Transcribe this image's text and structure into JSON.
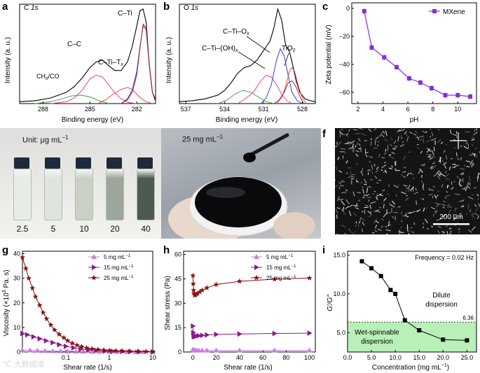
{
  "chart_data": [
    {
      "id": "a",
      "type": "line",
      "panel_label": "a",
      "title_el": "C",
      "title_orb": "1s",
      "xlabel": "Binding energy (eV)",
      "ylabel": "Intensity (a. u.)",
      "xlim": [
        289.5,
        280.8
      ],
      "xticks": [
        288,
        285,
        282
      ],
      "annotations": [
        "C–Ti",
        "C–C",
        "C–Ti–T",
        "CH",
        "/CO"
      ],
      "ann_subs": {
        "ctit": "x",
        "chx": "x"
      },
      "series": [
        {
          "name": "envelope",
          "color": "#000000",
          "x": [
            289.5,
            288.5,
            287.5,
            286.5,
            286,
            285.5,
            285,
            284.6,
            284.2,
            283.8,
            283.4,
            283,
            282.6,
            282.3,
            282,
            281.8,
            281.6,
            281.4,
            281.2,
            281,
            280.8
          ],
          "y": [
            2,
            3,
            6,
            12,
            18,
            27,
            38,
            44,
            46,
            40,
            35,
            35,
            44,
            60,
            82,
            98,
            100,
            86,
            40,
            12,
            4
          ]
        },
        {
          "name": "C-C",
          "color": "#e43ea8",
          "x": [
            287.5,
            286.5,
            286,
            285.5,
            285,
            284.6,
            284.2,
            283.8,
            283.4,
            283,
            282.5,
            282
          ],
          "y": [
            0,
            2,
            6,
            14,
            26,
            30,
            28,
            20,
            11,
            5,
            1,
            0
          ]
        },
        {
          "name": "C-Ti-Tx",
          "color": "#e05050",
          "x": [
            284.5,
            284,
            283.5,
            283,
            282.6,
            282.3,
            282,
            281.7,
            281.4,
            281
          ],
          "y": [
            0,
            4,
            10,
            15,
            17,
            15,
            10,
            5,
            2,
            0
          ]
        },
        {
          "name": "C-Ti",
          "color": "#3a3ad8",
          "x": [
            283,
            282.6,
            282.3,
            282,
            281.8,
            281.6,
            281.4,
            281.2,
            281,
            280.8
          ],
          "y": [
            0,
            5,
            14,
            34,
            60,
            82,
            78,
            40,
            12,
            2
          ]
        },
        {
          "name": "C-Ti dark",
          "color": "#a52a2a",
          "x": [
            283,
            282.6,
            282.3,
            282,
            281.8,
            281.6,
            281.4,
            281.2,
            281,
            280.8
          ],
          "y": [
            0,
            4,
            12,
            30,
            58,
            84,
            80,
            42,
            12,
            2
          ]
        },
        {
          "name": "CHx/CO",
          "color": "#3ea03e",
          "x": [
            288.5,
            287.5,
            286.8,
            286.2,
            285.6,
            285,
            284.4,
            283.8
          ],
          "y": [
            0,
            2,
            5,
            8,
            9,
            7,
            3,
            0
          ]
        }
      ]
    },
    {
      "id": "b",
      "type": "line",
      "panel_label": "b",
      "title_el": "O",
      "title_orb": "1s",
      "xlabel": "Binding energy (eV)",
      "ylabel": "Intensity (a. u.)",
      "xlim": [
        537.5,
        527
      ],
      "xticks": [
        537,
        534,
        531,
        528
      ],
      "annotations": [
        "C–Ti–O",
        "C–Ti–(OH)",
        "TiO"
      ],
      "ann_subs": {
        "ctio": "x",
        "ctioh": "x",
        "tio": "2"
      },
      "series": [
        {
          "name": "envelope",
          "color": "#000000",
          "x": [
            537.5,
            536.5,
            535.5,
            534.5,
            534,
            533.5,
            533,
            532.5,
            532,
            531.5,
            531,
            530.5,
            530.2,
            529.9,
            529.6,
            529.3,
            529,
            528.8,
            528.5,
            528.2,
            527.8,
            527.4,
            527
          ],
          "y": [
            2,
            3,
            5,
            9,
            14,
            22,
            32,
            38,
            40,
            46,
            56,
            66,
            80,
            100,
            88,
            62,
            55,
            44,
            25,
            12,
            5,
            3,
            2
          ]
        },
        {
          "name": "C-Ti-(OH)x",
          "color": "#3ea03e",
          "x": [
            534.5,
            533.8,
            533.2,
            532.6,
            532,
            531.4,
            530.8,
            530.2
          ],
          "y": [
            0,
            4,
            10,
            14,
            12,
            7,
            2,
            0
          ]
        },
        {
          "name": "C-Ti-Ox",
          "color": "#e43ea8",
          "x": [
            533,
            532.4,
            531.8,
            531.2,
            530.8,
            530.4,
            530,
            529.6,
            529.2,
            528.8
          ],
          "y": [
            0,
            5,
            12,
            24,
            30,
            28,
            20,
            10,
            3,
            0
          ]
        },
        {
          "name": "C-Ti-Ox blue",
          "color": "#3a3ad8",
          "x": [
            531.2,
            530.8,
            530.4,
            530,
            529.7,
            529.4,
            529.1,
            528.8,
            528.4,
            528
          ],
          "y": [
            0,
            6,
            20,
            46,
            58,
            50,
            30,
            12,
            3,
            0
          ]
        },
        {
          "name": "TiO2",
          "color": "#e05050",
          "x": [
            530,
            529.6,
            529.3,
            529,
            528.8,
            528.6,
            528.3,
            528,
            527.7
          ],
          "y": [
            0,
            6,
            18,
            34,
            38,
            34,
            18,
            6,
            0
          ]
        },
        {
          "name": "TiO2 dark",
          "color": "#a52a2a",
          "x": [
            530.2,
            529.8,
            529.4,
            529.1,
            528.8,
            528.5,
            528.2,
            527.9
          ],
          "y": [
            0,
            4,
            12,
            22,
            24,
            18,
            8,
            0
          ]
        }
      ]
    },
    {
      "id": "c",
      "type": "line",
      "panel_label": "c",
      "xlabel": "pH",
      "ylabel": "Zeta potential (mV)",
      "xlim": [
        1.5,
        11.5
      ],
      "ylim": [
        -68,
        4
      ],
      "xticks": [
        2,
        4,
        6,
        8,
        10,
        12
      ],
      "yticks": [
        0,
        -20,
        -40,
        -60
      ],
      "legend": "MXene",
      "color": "#8b2be2",
      "x": [
        2.5,
        3.1,
        4.1,
        5.1,
        6.1,
        7.0,
        7.9,
        9.0,
        10.0,
        11.0
      ],
      "y": [
        -2,
        -28,
        -35,
        -42,
        -50,
        -53,
        -57,
        -62,
        -62,
        -63
      ]
    },
    {
      "id": "g",
      "type": "line",
      "panel_label": "g",
      "xlabel": "Shear rate (1/s)",
      "ylabel_prefix": "Viscosity (×10",
      "ylabel_sup": "3",
      "ylabel_suffix": " Pa. s)",
      "xscale": "log",
      "xlim": [
        0.01,
        10
      ],
      "ylim": [
        0,
        41
      ],
      "xticks": [
        0.1,
        1,
        10
      ],
      "xticklabels": [
        "0.1",
        "1",
        "10"
      ],
      "yticks": [
        0,
        10,
        20,
        30,
        40
      ],
      "series": [
        {
          "name": "5 mg mL",
          "unit_sup": "−1",
          "color": "#c77fe0",
          "marker": "triangle-up",
          "x": [
            0.01,
            0.015,
            0.022,
            0.033,
            0.05,
            0.075,
            0.11,
            0.17,
            0.25,
            0.4,
            0.6,
            1,
            1.5,
            2.5,
            4,
            6,
            10
          ],
          "y": [
            0.8,
            0.7,
            0.6,
            0.5,
            0.4,
            0.35,
            0.3,
            0.25,
            0.2,
            0.18,
            0.15,
            0.12,
            0.1,
            0.1,
            0.08,
            0.08,
            0.07
          ]
        },
        {
          "name": "15 mg mL",
          "unit_sup": "−1",
          "color": "#8b1a8b",
          "marker": "triangle-right",
          "x": [
            0.01,
            0.013,
            0.018,
            0.025,
            0.035,
            0.05,
            0.07,
            0.1,
            0.15,
            0.22,
            0.33,
            0.5,
            0.8,
            1.2,
            2,
            3,
            5,
            10
          ],
          "y": [
            7.5,
            7,
            6.2,
            5.4,
            4.6,
            3.8,
            3,
            2.3,
            1.7,
            1.2,
            0.9,
            0.6,
            0.4,
            0.3,
            0.2,
            0.15,
            0.1,
            0.08
          ]
        },
        {
          "name": "25 mg mL",
          "unit_sup": "−1",
          "color": "#8b1010",
          "marker": "star",
          "x": [
            0.01,
            0.012,
            0.014,
            0.017,
            0.02,
            0.025,
            0.03,
            0.036,
            0.045,
            0.055,
            0.07,
            0.09,
            0.11,
            0.14,
            0.18,
            0.23,
            0.3,
            0.4,
            0.55,
            0.75,
            1,
            1.4,
            2,
            3,
            4.5,
            7,
            10
          ],
          "y": [
            38.5,
            34,
            30,
            26,
            22.5,
            19,
            16,
            13.5,
            11,
            9,
            7.2,
            5.8,
            4.6,
            3.6,
            2.8,
            2.2,
            1.7,
            1.3,
            1,
            0.8,
            0.6,
            0.5,
            0.4,
            0.3,
            0.25,
            0.2,
            0.18
          ]
        }
      ]
    },
    {
      "id": "h",
      "type": "line",
      "panel_label": "h",
      "xlabel": "Shear rate (1/s)",
      "ylabel": "Shear stress (Pa)",
      "xlim": [
        -8,
        105
      ],
      "ylim": [
        0,
        62
      ],
      "xticks": [
        0,
        20,
        40,
        60,
        80,
        100
      ],
      "yticks": [
        0,
        15,
        30,
        45,
        60
      ],
      "series": [
        {
          "name": "5 mg mL",
          "unit_sup": "−1",
          "color": "#c77fe0",
          "marker": "triangle-up",
          "x": [
            0,
            0.5,
            1,
            2,
            3,
            5,
            8,
            12,
            20,
            40,
            70,
            100
          ],
          "y": [
            1.5,
            1.2,
            1,
            1,
            1,
            1,
            1,
            1,
            1,
            1,
            1,
            1
          ]
        },
        {
          "name": "15 mg mL",
          "unit_sup": "−1",
          "color": "#8b1a8b",
          "marker": "triangle-right",
          "x": [
            0,
            0.3,
            0.6,
            1,
            1.5,
            2,
            3,
            5,
            8,
            12,
            20,
            40,
            70,
            100
          ],
          "y": [
            16,
            12,
            10,
            9.5,
            9.5,
            9.6,
            9.8,
            10,
            10.2,
            10.5,
            10.8,
            11.1,
            11.4,
            11.6
          ]
        },
        {
          "name": "25 mg mL",
          "unit_sup": "−1",
          "color": "#8b1010",
          "marker": "star",
          "x": [
            0,
            0.3,
            0.6,
            1,
            1.5,
            2,
            3,
            4,
            6,
            8,
            12,
            20,
            40,
            70,
            100
          ],
          "y": [
            47,
            42,
            38,
            36,
            35,
            35,
            35.5,
            36,
            37,
            38,
            39.5,
            41.5,
            43.5,
            44.8,
            45.5
          ]
        }
      ]
    },
    {
      "id": "i",
      "type": "line",
      "panel_label": "i",
      "xlabel": "Concentration (mg mL",
      "xlabel_sup": "−1",
      "xlabel_suffix": ")",
      "ylabel": "G′/G″",
      "xlim": [
        0,
        27
      ],
      "ylim": [
        2.5,
        15.5
      ],
      "xticks": [
        0,
        5,
        10,
        15,
        20,
        25
      ],
      "xticklabels": [
        "0.0",
        "5.0",
        "10.0",
        "15.0",
        "20.0",
        "25.0"
      ],
      "yticks": [
        5,
        10,
        15
      ],
      "yticklabels": [
        "5.0",
        "10.0",
        "15.0"
      ],
      "annotation_title": "Frequency = 0.02 Hz",
      "threshold": 6.36,
      "threshold_label": "6.36",
      "region_low": [
        "Wet-spinnable",
        "dispersion"
      ],
      "region_high": [
        "Dilute",
        "dispersion"
      ],
      "color": "#000000",
      "x": [
        3,
        5,
        7,
        9,
        10,
        12,
        15,
        20,
        25
      ],
      "y": [
        14.2,
        13.3,
        12.3,
        10.5,
        10,
        6.6,
        5.3,
        4.1,
        4.0
      ]
    }
  ],
  "panels": {
    "d": {
      "label": "d",
      "unit_prefix": "Unit: μg mL",
      "unit_sup": "−1",
      "vials": [
        "2.5",
        "5",
        "10",
        "20",
        "40"
      ],
      "vial_colors": [
        "#e8ece6",
        "#dfe4dc",
        "#c9d0c4",
        "#9da69a",
        "#4c5a52"
      ]
    },
    "e": {
      "label": "e",
      "conc_prefix": "25 mg mL",
      "conc_sup": "−1"
    },
    "f": {
      "label": "f",
      "scalebar": "200 μm"
    }
  },
  "watermark": "℃ 大数据库"
}
